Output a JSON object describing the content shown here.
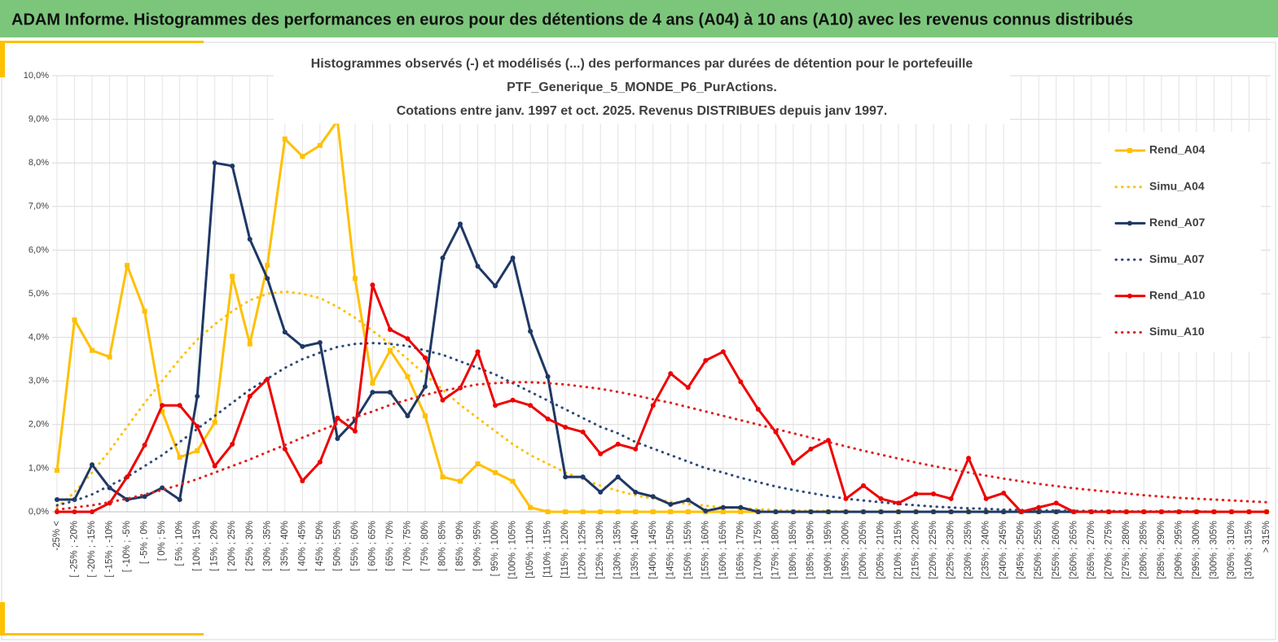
{
  "banner": "ADAM Informe. Histogrammes des performances en euros pour des détentions de 4 ans (A04) à 10 ans (A10) avec les revenus connus distribués",
  "chart_data": {
    "type": "line",
    "title": [
      "Histogrammes observés (-) et modélisés (...) des performances par durées de détention pour le portefeuille",
      "PTF_Generique_5_MONDE_P6_PurActions.",
      "Cotations entre janv. 1997 et oct. 2025. Revenus DISTRIBUES depuis janv 1997."
    ],
    "categories": [
      "-25% <",
      "[ -25% ; -20%",
      "[ -20% ; -15%",
      "[ -15% ; -10%",
      "[ -10% ; -5%",
      "[ -5% ; 0%",
      "[ 0% ; 5%",
      "[ 5% ; 10%",
      "[ 10% ; 15%",
      "[ 15% ; 20%",
      "[ 20% ; 25%",
      "[ 25% ; 30%",
      "[ 30% ; 35%",
      "[ 35% ; 40%",
      "[ 40% ; 45%",
      "[ 45% ; 50%",
      "[ 50% ; 55%",
      "[ 55% ; 60%",
      "[ 60% ; 65%",
      "[ 65% ; 70%",
      "[ 70% ; 75%",
      "[ 75% ; 80%",
      "[ 80% ; 85%",
      "[ 85% ; 90%",
      "[ 90% ; 95%",
      "[ 95% ; 100%",
      "[100% ; 105%",
      "[105% ; 110%",
      "[110% ; 115%",
      "[115% ; 120%",
      "[120% ; 125%",
      "[125% ; 130%",
      "[130% ; 135%",
      "[135% ; 140%",
      "[140% ; 145%",
      "[145% ; 150%",
      "[150% ; 155%",
      "[155% ; 160%",
      "[160% ; 165%",
      "[165% ; 170%",
      "[170% ; 175%",
      "[175% ; 180%",
      "[180% ; 185%",
      "[185% ; 190%",
      "[190% ; 195%",
      "[195% ; 200%",
      "[200% ; 205%",
      "[205% ; 210%",
      "[210% ; 215%",
      "[215% ; 220%",
      "[220% ; 225%",
      "[225% ; 230%",
      "[230% ; 235%",
      "[235% ; 240%",
      "[240% ; 245%",
      "[245% ; 250%",
      "[250% ; 255%",
      "[255% ; 260%",
      "[260% ; 265%",
      "[265% ; 270%",
      "[270% ; 275%",
      "[275% ; 280%",
      "[280% ; 285%",
      "[285% ; 290%",
      "[290% ; 295%",
      "[295% ; 300%",
      "[300% ; 305%",
      "[305% ; 310%",
      "[310% ; 315%",
      "> 315%"
    ],
    "series": [
      {
        "name": "Rend_A04",
        "color": "#ffc000",
        "line_style": "solid",
        "marker": "square",
        "values": [
          0.95,
          4.4,
          3.7,
          3.55,
          5.65,
          4.6,
          2.3,
          1.25,
          1.4,
          2.05,
          5.4,
          3.85,
          5.65,
          8.55,
          8.15,
          8.4,
          8.97,
          5.35,
          2.95,
          3.7,
          3.1,
          2.2,
          0.8,
          0.7,
          1.1,
          0.9,
          0.7,
          0.1,
          0,
          0,
          0,
          0,
          0,
          0,
          0,
          0,
          0,
          0,
          0,
          0,
          0,
          0,
          0,
          0,
          0,
          0,
          0,
          0,
          0,
          0,
          0,
          0,
          0,
          0,
          0,
          0,
          0,
          0,
          0,
          0,
          0,
          0,
          0,
          0,
          0,
          0,
          0,
          0,
          0,
          0
        ]
      },
      {
        "name": "Simu_A04",
        "color": "#ffc000",
        "line_style": "dotted",
        "marker": "none",
        "values": [
          0.1,
          0.45,
          0.9,
          1.4,
          1.95,
          2.5,
          3.0,
          3.5,
          3.95,
          4.3,
          4.6,
          4.85,
          5.0,
          5.05,
          5.0,
          4.9,
          4.7,
          4.45,
          4.15,
          3.85,
          3.5,
          3.15,
          2.8,
          2.45,
          2.15,
          1.85,
          1.55,
          1.3,
          1.1,
          0.9,
          0.75,
          0.6,
          0.48,
          0.38,
          0.3,
          0.23,
          0.18,
          0.14,
          0.1,
          0.08,
          0.06,
          0.04,
          0.03,
          0.02,
          0.02,
          0.01,
          0,
          0,
          0,
          0,
          0,
          0,
          0,
          0,
          0,
          0,
          0,
          0,
          0,
          0,
          0,
          0,
          0,
          0,
          0,
          0,
          0,
          0,
          0,
          0
        ]
      },
      {
        "name": "Rend_A07",
        "color": "#1f3864",
        "line_style": "solid",
        "marker": "circle",
        "values": [
          0.28,
          0.28,
          1.08,
          0.55,
          0.28,
          0.35,
          0.55,
          0.28,
          2.65,
          8.0,
          7.93,
          6.25,
          5.35,
          4.12,
          3.79,
          3.88,
          1.68,
          2.1,
          2.74,
          2.74,
          2.2,
          2.87,
          5.82,
          6.6,
          5.63,
          5.18,
          5.82,
          4.14,
          3.1,
          0.8,
          0.8,
          0.45,
          0.8,
          0.45,
          0.35,
          0.17,
          0.27,
          0.02,
          0.1,
          0.1,
          0,
          0,
          0,
          0,
          0,
          0,
          0,
          0,
          0,
          0,
          0,
          0,
          0,
          0,
          0,
          0,
          0,
          0,
          0,
          0,
          0,
          0,
          0,
          0,
          0,
          0,
          0,
          0,
          0,
          0
        ]
      },
      {
        "name": "Simu_A07",
        "color": "#2e4a78",
        "line_style": "dotted",
        "marker": "none",
        "values": [
          0.15,
          0.25,
          0.4,
          0.6,
          0.8,
          1.05,
          1.3,
          1.6,
          1.9,
          2.2,
          2.5,
          2.8,
          3.05,
          3.3,
          3.5,
          3.65,
          3.78,
          3.85,
          3.87,
          3.85,
          3.8,
          3.7,
          3.6,
          3.45,
          3.3,
          3.15,
          2.95,
          2.75,
          2.55,
          2.35,
          2.15,
          1.95,
          1.8,
          1.6,
          1.45,
          1.3,
          1.15,
          1.0,
          0.9,
          0.78,
          0.68,
          0.58,
          0.5,
          0.43,
          0.36,
          0.3,
          0.26,
          0.22,
          0.18,
          0.15,
          0.12,
          0.1,
          0.08,
          0.07,
          0.05,
          0.04,
          0.03,
          0.03,
          0.02,
          0.02,
          0.02,
          0.01,
          0.01,
          0.01,
          0.01,
          0.01,
          0,
          0,
          0,
          0
        ]
      },
      {
        "name": "Rend_A10",
        "color": "#ee0000",
        "line_style": "solid",
        "marker": "circle",
        "values": [
          0,
          0,
          0,
          0.2,
          0.8,
          1.53,
          2.44,
          2.44,
          1.96,
          1.05,
          1.55,
          2.65,
          3.04,
          1.44,
          0.71,
          1.14,
          2.15,
          1.85,
          5.2,
          4.18,
          3.97,
          3.53,
          2.56,
          2.84,
          3.67,
          2.44,
          2.56,
          2.44,
          2.13,
          1.94,
          1.83,
          1.33,
          1.55,
          1.44,
          2.44,
          3.17,
          2.85,
          3.47,
          3.67,
          2.98,
          2.35,
          1.83,
          1.12,
          1.44,
          1.64,
          0.3,
          0.6,
          0.3,
          0.2,
          0.41,
          0.41,
          0.3,
          1.23,
          0.3,
          0.43,
          0,
          0.1,
          0.2,
          0,
          0,
          0,
          0,
          0,
          0,
          0,
          0,
          0,
          0,
          0,
          0
        ]
      },
      {
        "name": "Simu_A10",
        "color": "#e02020",
        "line_style": "dotted",
        "marker": "none",
        "values": [
          0.05,
          0.1,
          0.15,
          0.22,
          0.3,
          0.4,
          0.5,
          0.62,
          0.75,
          0.9,
          1.05,
          1.2,
          1.37,
          1.53,
          1.7,
          1.86,
          2.02,
          2.17,
          2.3,
          2.45,
          2.57,
          2.68,
          2.78,
          2.85,
          2.92,
          2.95,
          2.97,
          2.97,
          2.95,
          2.92,
          2.87,
          2.82,
          2.75,
          2.67,
          2.58,
          2.5,
          2.4,
          2.3,
          2.2,
          2.1,
          2.0,
          1.9,
          1.8,
          1.7,
          1.6,
          1.5,
          1.4,
          1.31,
          1.22,
          1.13,
          1.05,
          0.97,
          0.9,
          0.83,
          0.76,
          0.7,
          0.64,
          0.59,
          0.54,
          0.5,
          0.46,
          0.42,
          0.38,
          0.35,
          0.32,
          0.3,
          0.28,
          0.26,
          0.24,
          0.22
        ]
      }
    ],
    "ylim": [
      0,
      10
    ],
    "yticks": [
      {
        "value": 0,
        "label": "0,0%"
      },
      {
        "value": 1,
        "label": "1,0%"
      },
      {
        "value": 2,
        "label": "2,0%"
      },
      {
        "value": 3,
        "label": "3,0%"
      },
      {
        "value": 4,
        "label": "4,0%"
      },
      {
        "value": 5,
        "label": "5,0%"
      },
      {
        "value": 6,
        "label": "6,0%"
      },
      {
        "value": 7,
        "label": "7,0%"
      },
      {
        "value": 8,
        "label": "8,0%"
      },
      {
        "value": 9,
        "label": "9,0%"
      },
      {
        "value": 10,
        "label": "10,0%"
      }
    ],
    "grid": true,
    "legend": "right"
  }
}
